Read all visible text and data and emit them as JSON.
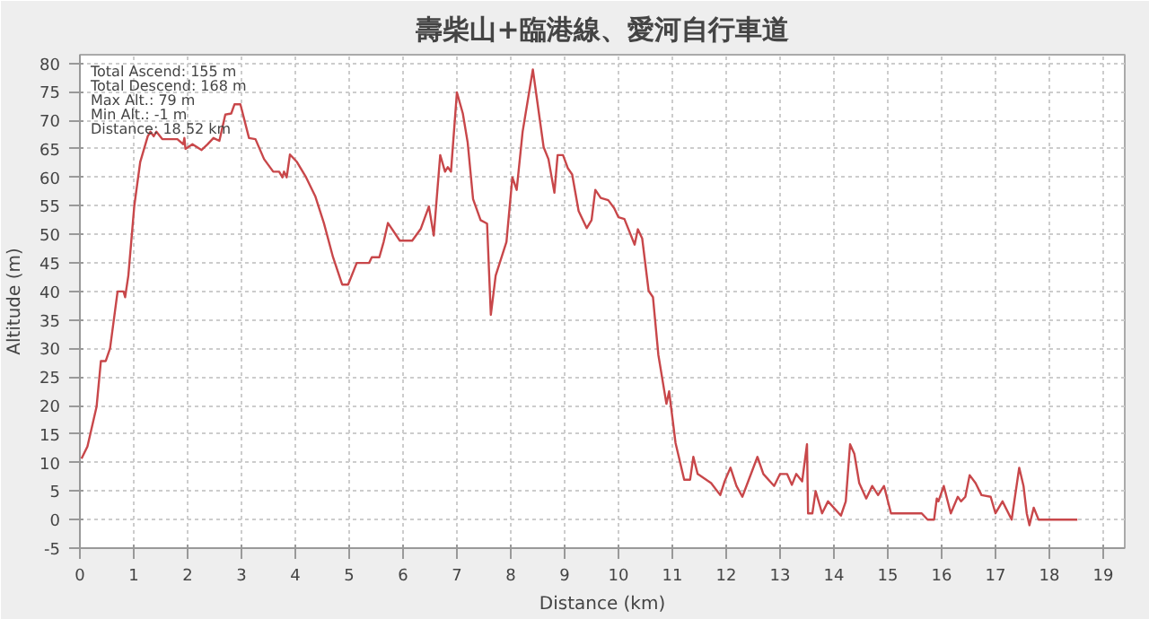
{
  "chart_data": {
    "type": "line",
    "title": "壽柴山+臨港線、愛河自行車道",
    "xlabel": "Distance (km)",
    "ylabel": "Altitude (m)",
    "annotations": [
      "Total Ascend: 155 m",
      "Total Descend: 168 m",
      "Max Alt.: 79 m",
      "Min Alt.: -1 m",
      "Distance: 18.52 km"
    ],
    "xlim": [
      0,
      19.4
    ],
    "ylim": [
      -5,
      81.5
    ],
    "xticks": [
      0,
      1,
      2,
      3,
      4,
      5,
      6,
      7,
      8,
      9,
      10,
      11,
      12,
      13,
      14,
      15,
      16,
      17,
      18,
      19
    ],
    "yticks": [
      -5,
      0,
      5,
      10,
      15,
      20,
      25,
      30,
      35,
      40,
      45,
      50,
      55,
      60,
      65,
      70,
      75,
      80
    ],
    "grid": true,
    "marker": "none",
    "line_style": "solid",
    "series": [
      {
        "color": "#c8474a",
        "x": [
          0.03,
          0.14,
          0.31,
          0.39,
          0.48,
          0.56,
          0.7,
          0.81,
          0.84,
          0.9,
          1.01,
          1.12,
          1.26,
          1.31,
          1.37,
          1.42,
          1.53,
          1.81,
          1.92,
          1.94,
          1.96,
          2.09,
          2.26,
          2.37,
          2.48,
          2.59,
          2.7,
          2.81,
          2.87,
          2.98,
          3.14,
          3.26,
          3.42,
          3.59,
          3.7,
          3.76,
          3.79,
          3.84,
          3.9,
          4.03,
          4.2,
          4.37,
          4.53,
          4.7,
          4.87,
          4.98,
          5.14,
          5.37,
          5.42,
          5.56,
          5.64,
          5.72,
          5.94,
          6.17,
          6.33,
          6.48,
          6.57,
          6.69,
          6.78,
          6.83,
          6.89,
          7.0,
          7.11,
          7.2,
          7.3,
          7.44,
          7.56,
          7.63,
          7.72,
          7.92,
          8.03,
          8.11,
          8.22,
          8.41,
          8.61,
          8.7,
          8.81,
          8.87,
          8.97,
          9.06,
          9.14,
          9.26,
          9.41,
          9.5,
          9.57,
          9.67,
          9.81,
          9.92,
          10.0,
          10.11,
          10.3,
          10.36,
          10.44,
          10.56,
          10.64,
          10.74,
          10.89,
          10.94,
          11.06,
          11.22,
          11.33,
          11.39,
          11.47,
          11.72,
          11.89,
          11.97,
          12.08,
          12.19,
          12.3,
          12.58,
          12.69,
          12.89,
          13.0,
          13.13,
          13.22,
          13.3,
          13.41,
          13.5,
          13.52,
          13.6,
          13.66,
          13.78,
          13.89,
          14.13,
          14.22,
          14.3,
          14.38,
          14.47,
          14.6,
          14.71,
          14.82,
          14.93,
          15.06,
          15.63,
          15.74,
          15.86,
          15.91,
          15.94,
          16.04,
          16.17,
          16.3,
          16.36,
          16.44,
          16.52,
          16.63,
          16.74,
          16.91,
          17.0,
          17.13,
          17.3,
          17.44,
          17.52,
          17.58,
          17.63,
          17.71,
          17.8,
          18.52
        ],
        "values": [
          10.7,
          12.8,
          19.8,
          27.8,
          27.8,
          30,
          40,
          40,
          39,
          42.8,
          55,
          62.7,
          67.2,
          68,
          67.2,
          68,
          66.7,
          66.7,
          65.8,
          66.9,
          65,
          65.8,
          64.8,
          65.8,
          66.9,
          66.4,
          71,
          71.2,
          72.8,
          72.8,
          66.9,
          66.7,
          63.2,
          61,
          61,
          60,
          61,
          60,
          64,
          62.7,
          60,
          56.7,
          52,
          46,
          41.2,
          41.2,
          45,
          45,
          46,
          46,
          48.7,
          52,
          48.9,
          48.9,
          51,
          54.9,
          49.8,
          63.9,
          61,
          61.8,
          61,
          74.9,
          71.2,
          66.1,
          56.2,
          52.5,
          51.9,
          35.9,
          42.8,
          48.7,
          60,
          57.8,
          68,
          78.9,
          65.3,
          63.2,
          57.3,
          63.9,
          63.9,
          61.6,
          60.5,
          54.1,
          51.1,
          52.5,
          57.8,
          56.4,
          56,
          54.6,
          53,
          52.7,
          48.2,
          50.9,
          49.3,
          40.1,
          39,
          28.9,
          20.3,
          22.5,
          13.4,
          7,
          7,
          11,
          8,
          6.4,
          4.3,
          6.7,
          9.1,
          5.9,
          4,
          11,
          8,
          5.9,
          8,
          8,
          6.1,
          8,
          6.7,
          13.2,
          1.1,
          1.1,
          5,
          1.1,
          3.2,
          0.7,
          3.2,
          13.2,
          11.5,
          6.4,
          3.7,
          5.9,
          4.3,
          5.9,
          1.1,
          1.1,
          0,
          0,
          3.7,
          3.2,
          5.9,
          1.1,
          4,
          3.2,
          4,
          7.8,
          6.4,
          4.3,
          4,
          1.1,
          3.2,
          0,
          9.1,
          5.9,
          1.1,
          -1,
          2.1,
          0,
          0
        ]
      }
    ]
  }
}
